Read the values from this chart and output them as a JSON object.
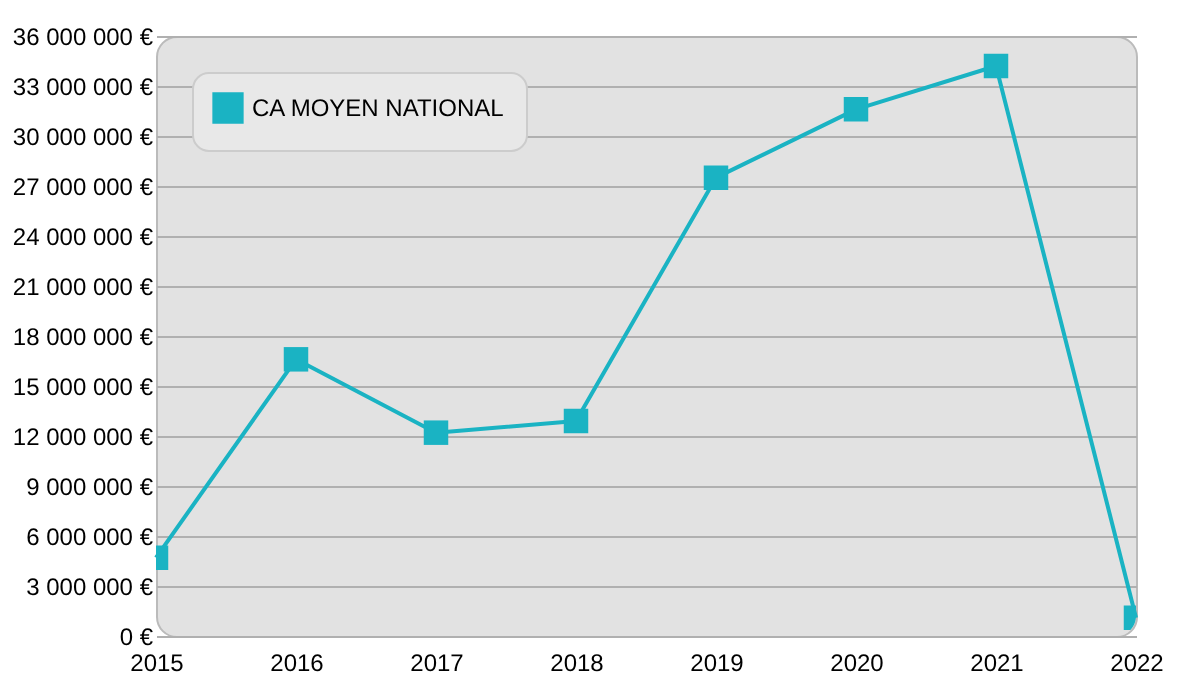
{
  "chart_data": {
    "type": "line",
    "categories": [
      "2015",
      "2016",
      "2017",
      "2018",
      "2019",
      "2020",
      "2021",
      "2022"
    ],
    "series": [
      {
        "name": "CA MOYEN NATIONAL",
        "color": "#1ab3c3",
        "values": [
          4700000,
          16600000,
          12200000,
          12900000,
          27500000,
          31600000,
          34200000,
          1100000
        ]
      }
    ],
    "ylim": [
      0,
      36000000
    ],
    "yticks": [
      {
        "value": 0,
        "label": "0 €"
      },
      {
        "value": 3000000,
        "label": "3 000 000 €"
      },
      {
        "value": 6000000,
        "label": "6 000 000 €"
      },
      {
        "value": 9000000,
        "label": "9 000 000 €"
      },
      {
        "value": 12000000,
        "label": "12 000 000 €"
      },
      {
        "value": 15000000,
        "label": "15 000 000 €"
      },
      {
        "value": 18000000,
        "label": "18 000 000 €"
      },
      {
        "value": 21000000,
        "label": "21 000 000 €"
      },
      {
        "value": 24000000,
        "label": "24 000 000 €"
      },
      {
        "value": 27000000,
        "label": "27 000 000 €"
      },
      {
        "value": 30000000,
        "label": "30 000 000 €"
      },
      {
        "value": 33000000,
        "label": "33 000 000 €"
      },
      {
        "value": 36000000,
        "label": "36 000 000 €"
      }
    ],
    "grid": "y",
    "legend": "top left",
    "marker": "square",
    "line_style": "solid"
  }
}
